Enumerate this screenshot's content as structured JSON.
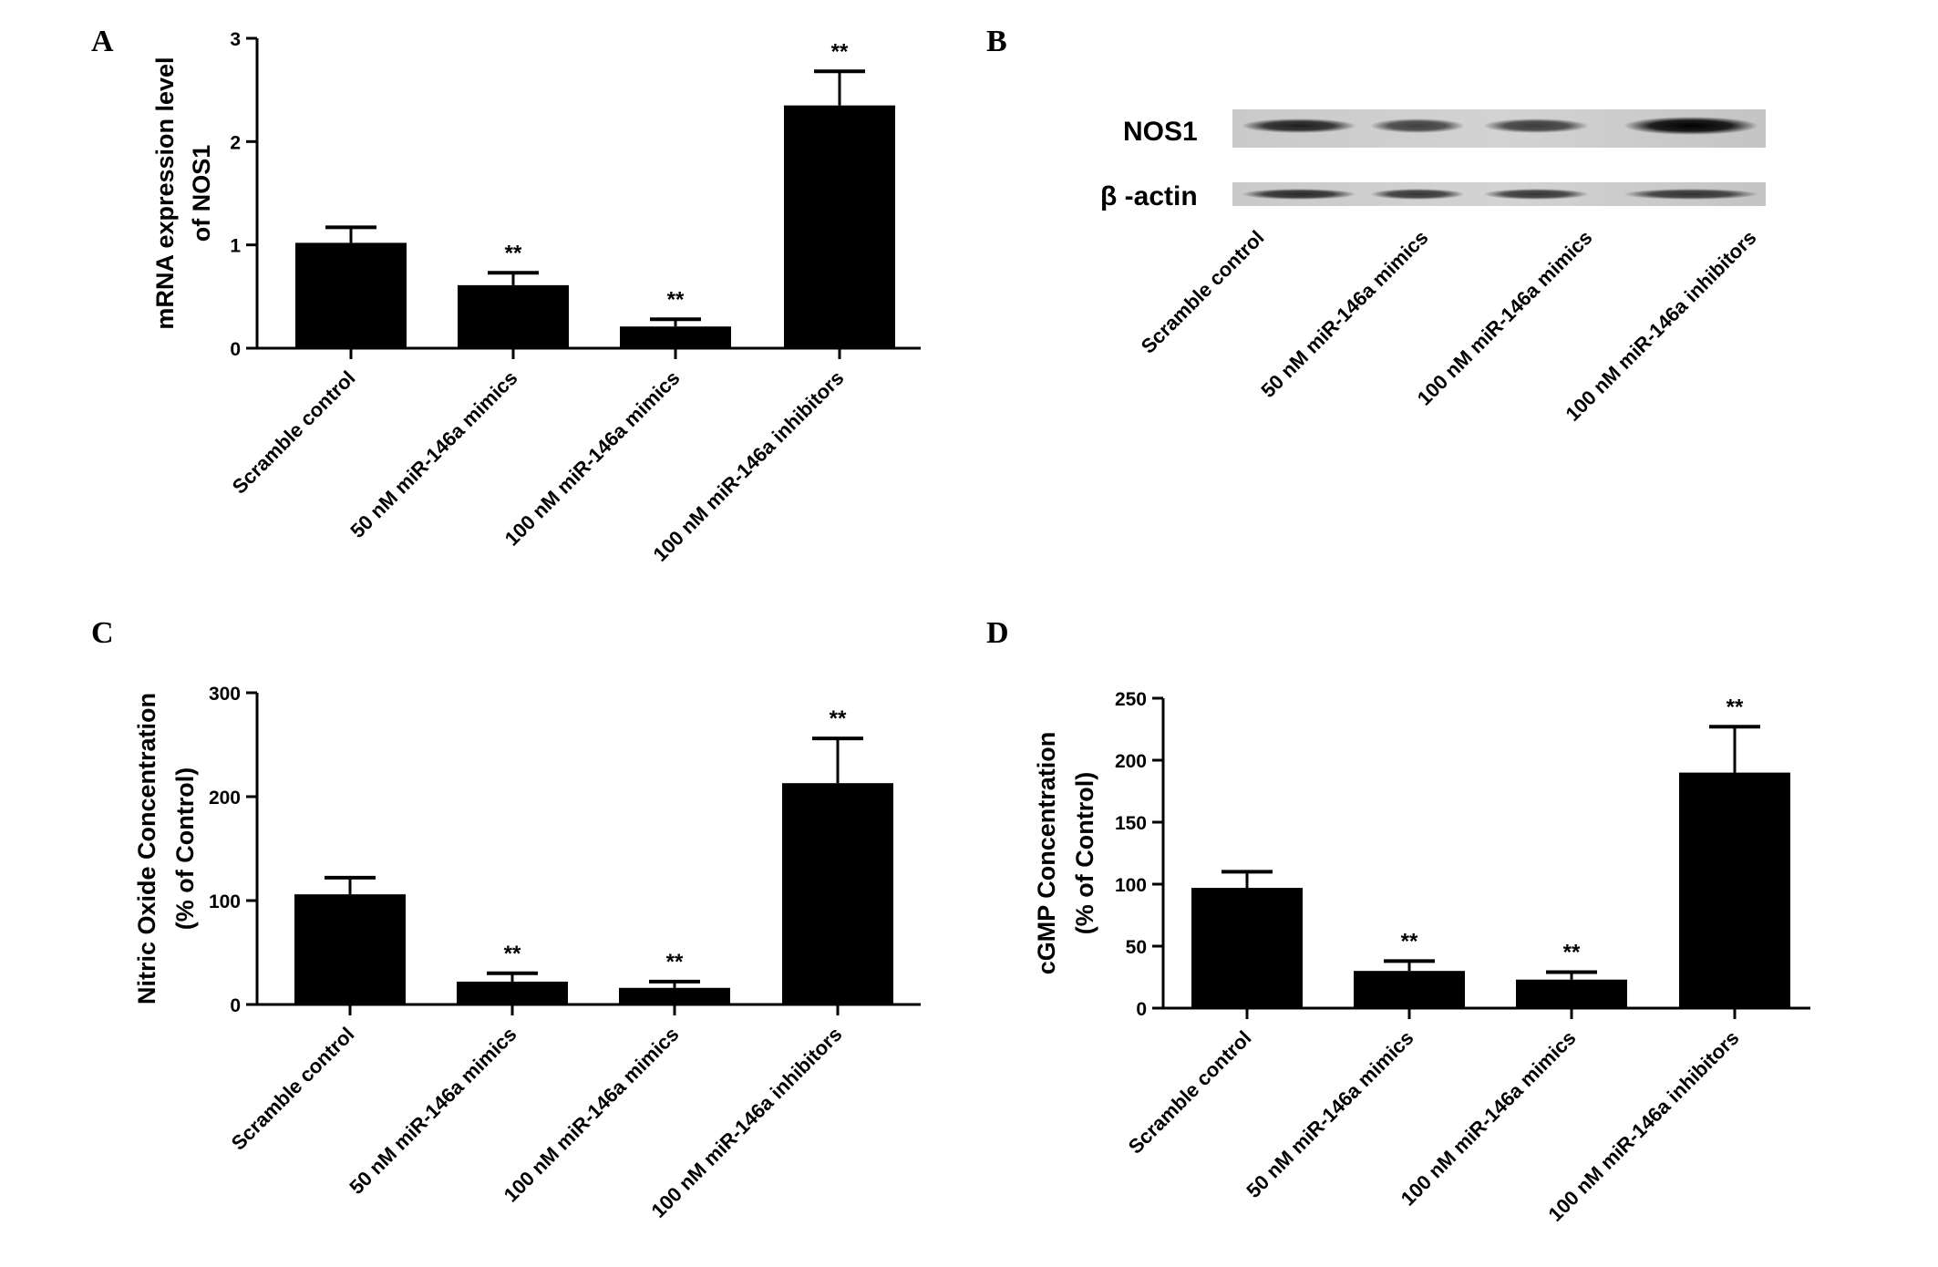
{
  "panels": {
    "A": "A",
    "B": "B",
    "C": "C",
    "D": "D"
  },
  "blot": {
    "bands": [
      "NOS1",
      "β -actin"
    ],
    "lanes": [
      "Scramble control",
      "50 nM miR-146a mimics",
      "100 nM miR-146a mimics",
      "100 nM miR-146a inhibitors"
    ],
    "nos1_intensity": [
      0.85,
      0.7,
      0.72,
      1.0
    ],
    "actin_intensity": [
      0.8,
      0.75,
      0.75,
      0.75
    ]
  },
  "chart_data": [
    {
      "panel": "A",
      "type": "bar",
      "categories": [
        "Scramble control",
        "50 nM miR-146a mimics",
        "100 nM miR-146a mimics",
        "100 nM miR-146a inhibitors"
      ],
      "values": [
        1.02,
        0.61,
        0.21,
        2.35
      ],
      "errors": [
        0.15,
        0.12,
        0.07,
        0.33
      ],
      "significance": [
        "",
        "**",
        "**",
        "**"
      ],
      "ylabel_lines": [
        "mRNA expression level",
        "of NOS1"
      ],
      "ylim": [
        0,
        3
      ],
      "yticks": [
        0,
        1,
        2,
        3
      ],
      "ytick_labels": [
        "0",
        "1",
        "2",
        "3"
      ],
      "color": "#000000"
    },
    {
      "panel": "C",
      "type": "bar",
      "categories": [
        "Scramble control",
        "50 nM miR-146a mimics",
        "100 nM miR-146a mimics",
        "100 nM miR-146a inhibitors"
      ],
      "values": [
        106,
        22,
        16,
        213
      ],
      "errors": [
        16,
        8,
        6,
        43
      ],
      "significance": [
        "",
        "**",
        "**",
        "**"
      ],
      "ylabel_lines": [
        "Nitric Oxide Concentration",
        "(% of Control)"
      ],
      "ylim": [
        0,
        300
      ],
      "yticks": [
        0,
        100,
        200,
        300
      ],
      "ytick_labels": [
        "0",
        "100",
        "200",
        "300"
      ],
      "color": "#000000"
    },
    {
      "panel": "D",
      "type": "bar",
      "categories": [
        "Scramble control",
        "50 nM miR-146a mimics",
        "100 nM miR-146a mimics",
        "100 nM miR-146a inhibitors"
      ],
      "values": [
        97,
        30,
        23,
        190
      ],
      "errors": [
        13,
        8,
        6,
        37
      ],
      "significance": [
        "",
        "**",
        "**",
        "**"
      ],
      "ylabel_lines": [
        "cGMP Concentration",
        "(% of Control)"
      ],
      "ylim": [
        0,
        250
      ],
      "yticks": [
        0,
        50,
        100,
        150,
        200,
        250
      ],
      "ytick_labels": [
        "0",
        "50",
        "100",
        "150",
        "200",
        "250"
      ],
      "color": "#000000"
    }
  ]
}
